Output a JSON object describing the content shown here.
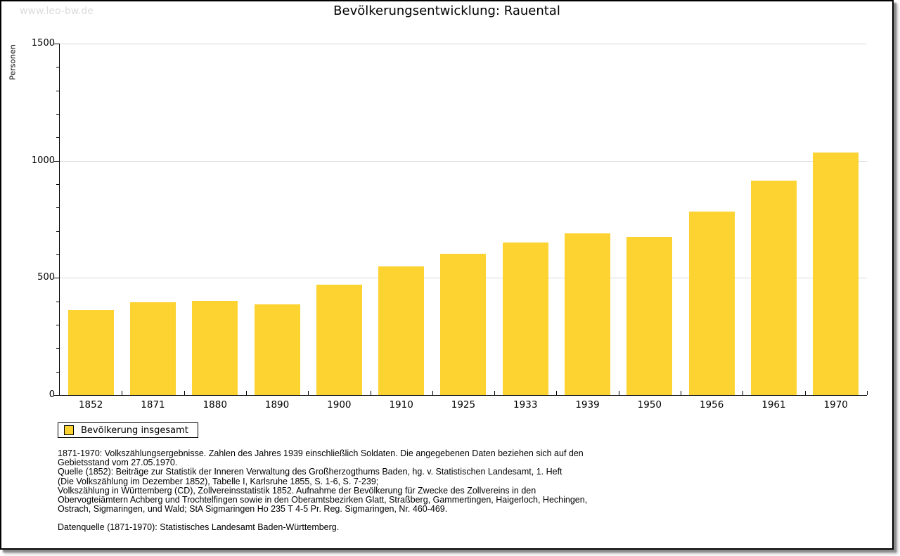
{
  "watermark": "www.leo-bw.de",
  "legend": {
    "label": "Bevölkerung insgesamt"
  },
  "chart_data": {
    "type": "bar",
    "title": "Bevölkerungsentwicklung: Rauental",
    "xlabel": "",
    "ylabel": "Personen",
    "categories": [
      "1852",
      "1871",
      "1880",
      "1890",
      "1900",
      "1910",
      "1925",
      "1933",
      "1939",
      "1950",
      "1956",
      "1961",
      "1970"
    ],
    "values": [
      364,
      395,
      401,
      386,
      472,
      549,
      602,
      650,
      689,
      675,
      782,
      915,
      1034
    ],
    "series_name": "Bevölkerung insgesamt",
    "ylim": [
      0,
      1500
    ],
    "yticks": [
      0,
      500,
      1000,
      1500
    ],
    "minor_tick_interval": 100,
    "grid": "horizontal-major",
    "bar_color": "#fcd330",
    "gridline_color": "#d9d9d9",
    "legend_position": "bottom-left"
  },
  "footnotes": {
    "lines": [
      "1871-1970: Volkszählungsergebnisse. Zahlen des Jahres 1939 einschließlich Soldaten. Die angegebenen Daten beziehen sich auf den",
      "Gebietsstand vom 27.05.1970.",
      "Quelle (1852): Beiträge zur Statistik der Inneren Verwaltung des Großherzogthums Baden, hg. v. Statistischen Landesamt, 1. Heft",
      "(Die Volkszählung im Dezember 1852), Tabelle I, Karlsruhe 1855, S. 1-6, S. 7-239;",
      "Volkszählung in Württemberg (CD), Zollvereinsstatistik 1852. Aufnahme der Bevölkerung für Zwecke des Zollvereins in den",
      "Obervogteiämtern Achberg und Trochtelfingen sowie in den Oberamtsbezirken Glatt, Straßberg, Gammertingen, Haigerloch, Hechingen,",
      "Ostrach, Sigmaringen, und Wald; StA Sigmaringen Ho 235 T 4-5 Pr. Reg. Sigmaringen, Nr. 460-469.",
      "",
      "Datenquelle (1871-1970): Statistisches Landesamt Baden-Württemberg."
    ]
  }
}
